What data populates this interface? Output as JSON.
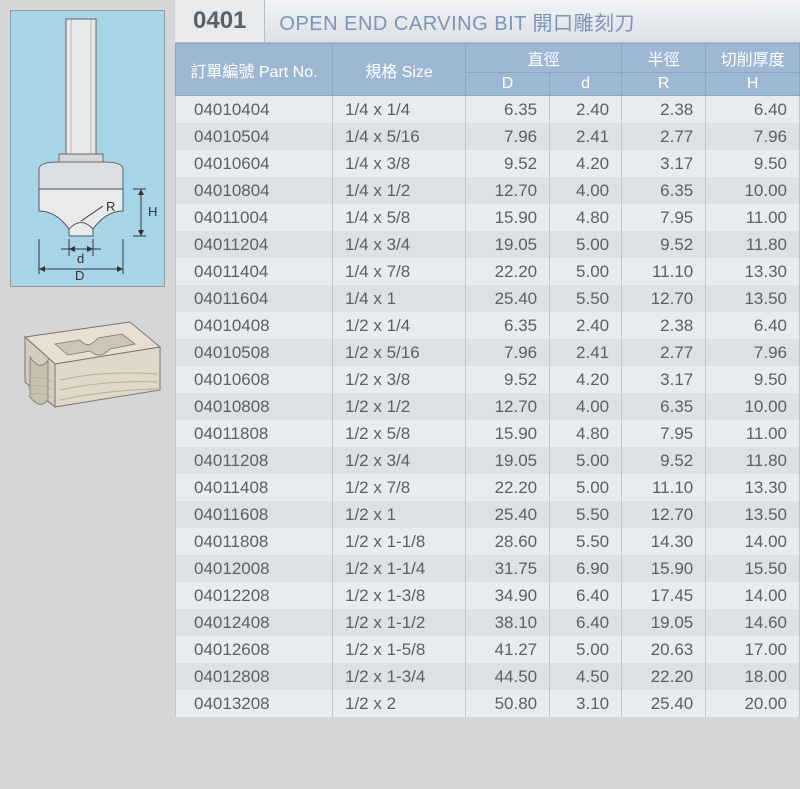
{
  "title": {
    "code": "0401",
    "name": "OPEN END CARVING BIT 開口雕刻刀"
  },
  "headers": {
    "partNo": "訂單編號 Part No.",
    "size": "規格 Size",
    "diameter": "直徑",
    "D": "D",
    "d": "d",
    "radius": "半徑",
    "R": "R",
    "cutDepth": "切削厚度",
    "H": "H"
  },
  "colors": {
    "page_bg": "#d4d6d8",
    "table_bg_odd": "#e9ecef",
    "table_bg_even": "#dde1e6",
    "header_bg": "#9eb8d4",
    "header_fg": "#ffffff",
    "text": "#5a6068",
    "title_accent": "#7a95b8",
    "diagram_bg": "#a8d4e8"
  },
  "rows": [
    {
      "part": "04010404",
      "size": "1/4 x 1/4",
      "D": "6.35",
      "d": "2.40",
      "R": "2.38",
      "H": "6.40"
    },
    {
      "part": "04010504",
      "size": "1/4 x 5/16",
      "D": "7.96",
      "d": "2.41",
      "R": "2.77",
      "H": "7.96"
    },
    {
      "part": "04010604",
      "size": "1/4 x 3/8",
      "D": "9.52",
      "d": "4.20",
      "R": "3.17",
      "H": "9.50"
    },
    {
      "part": "04010804",
      "size": "1/4 x 1/2",
      "D": "12.70",
      "d": "4.00",
      "R": "6.35",
      "H": "10.00"
    },
    {
      "part": "04011004",
      "size": "1/4 x 5/8",
      "D": "15.90",
      "d": "4.80",
      "R": "7.95",
      "H": "11.00"
    },
    {
      "part": "04011204",
      "size": "1/4 x 3/4",
      "D": "19.05",
      "d": "5.00",
      "R": "9.52",
      "H": "11.80"
    },
    {
      "part": "04011404",
      "size": "1/4 x 7/8",
      "D": "22.20",
      "d": "5.00",
      "R": "11.10",
      "H": "13.30"
    },
    {
      "part": "04011604",
      "size": "1/4 x 1",
      "D": "25.40",
      "d": "5.50",
      "R": "12.70",
      "H": "13.50"
    },
    {
      "part": "04010408",
      "size": "1/2 x 1/4",
      "D": "6.35",
      "d": "2.40",
      "R": "2.38",
      "H": "6.40"
    },
    {
      "part": "04010508",
      "size": "1/2 x 5/16",
      "D": "7.96",
      "d": "2.41",
      "R": "2.77",
      "H": "7.96"
    },
    {
      "part": "04010608",
      "size": "1/2 x 3/8",
      "D": "9.52",
      "d": "4.20",
      "R": "3.17",
      "H": "9.50"
    },
    {
      "part": "04010808",
      "size": "1/2 x 1/2",
      "D": "12.70",
      "d": "4.00",
      "R": "6.35",
      "H": "10.00"
    },
    {
      "part": "04011808",
      "size": "1/2 x 5/8",
      "D": "15.90",
      "d": "4.80",
      "R": "7.95",
      "H": "11.00"
    },
    {
      "part": "04011208",
      "size": "1/2 x 3/4",
      "D": "19.05",
      "d": "5.00",
      "R": "9.52",
      "H": "11.80"
    },
    {
      "part": "04011408",
      "size": "1/2 x 7/8",
      "D": "22.20",
      "d": "5.00",
      "R": "11.10",
      "H": "13.30"
    },
    {
      "part": "04011608",
      "size": "1/2 x 1",
      "D": "25.40",
      "d": "5.50",
      "R": "12.70",
      "H": "13.50"
    },
    {
      "part": "04011808",
      "size": "1/2 x 1-1/8",
      "D": "28.60",
      "d": "5.50",
      "R": "14.30",
      "H": "14.00"
    },
    {
      "part": "04012008",
      "size": "1/2 x 1-1/4",
      "D": "31.75",
      "d": "6.90",
      "R": "15.90",
      "H": "15.50"
    },
    {
      "part": "04012208",
      "size": "1/2 x 1-3/8",
      "D": "34.90",
      "d": "6.40",
      "R": "17.45",
      "H": "14.00"
    },
    {
      "part": "04012408",
      "size": "1/2 x 1-1/2",
      "D": "38.10",
      "d": "6.40",
      "R": "19.05",
      "H": "14.60"
    },
    {
      "part": "04012608",
      "size": "1/2 x 1-5/8",
      "D": "41.27",
      "d": "5.00",
      "R": "20.63",
      "H": "17.00"
    },
    {
      "part": "04012808",
      "size": "1/2 x 1-3/4",
      "D": "44.50",
      "d": "4.50",
      "R": "22.20",
      "H": "18.00"
    },
    {
      "part": "04013208",
      "size": "1/2 x 2",
      "D": "50.80",
      "d": "3.10",
      "R": "25.40",
      "H": "20.00"
    }
  ],
  "diagrams": {
    "bit_labels": {
      "R": "R",
      "H": "H",
      "d": "d",
      "D": "D"
    }
  }
}
